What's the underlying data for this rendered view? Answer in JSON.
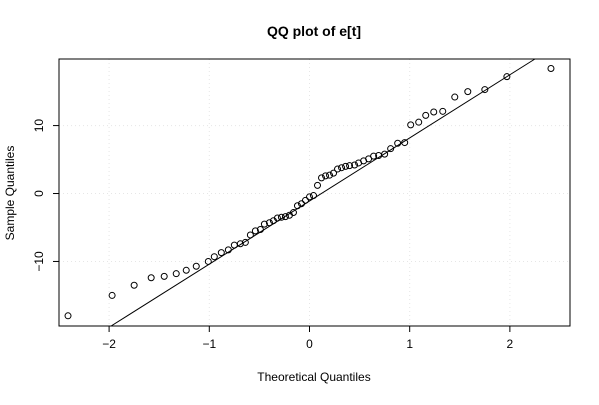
{
  "chart_data": {
    "type": "scatter",
    "title": "QQ plot of e[t]",
    "xlabel": "Theoretical Quantiles",
    "ylabel": "Sample Quantiles",
    "xlim": [
      -2.5,
      2.6
    ],
    "ylim": [
      -19.5,
      19.8
    ],
    "x_ticks": [
      -2,
      -1,
      0,
      1,
      2
    ],
    "y_ticks": [
      -10,
      0,
      10
    ],
    "x_tick_labels": [
      "−2",
      "−1",
      "0",
      "1",
      "2"
    ],
    "y_tick_labels": [
      "−10",
      "0",
      "10"
    ],
    "grid": true,
    "legend": "none",
    "marker": "open-circle",
    "reference_line": {
      "x": [
        -1.98,
        2.25
      ],
      "y": [
        -19.5,
        19.8
      ]
    },
    "series": [
      {
        "points": [
          [
            -2.41,
            -18.0
          ],
          [
            -1.97,
            -15.0
          ],
          [
            -1.75,
            -13.5
          ],
          [
            -1.58,
            -12.4
          ],
          [
            -1.45,
            -12.2
          ],
          [
            -1.33,
            -11.8
          ],
          [
            -1.23,
            -11.3
          ],
          [
            -1.13,
            -10.7
          ],
          [
            -1.01,
            -10.0
          ],
          [
            -0.95,
            -9.3
          ],
          [
            -0.88,
            -8.7
          ],
          [
            -0.81,
            -8.3
          ],
          [
            -0.75,
            -7.6
          ],
          [
            -0.69,
            -7.4
          ],
          [
            -0.64,
            -7.2
          ],
          [
            -0.59,
            -6.1
          ],
          [
            -0.54,
            -5.5
          ],
          [
            -0.49,
            -5.3
          ],
          [
            -0.45,
            -4.5
          ],
          [
            -0.4,
            -4.3
          ],
          [
            -0.36,
            -4.0
          ],
          [
            -0.32,
            -3.6
          ],
          [
            -0.28,
            -3.5
          ],
          [
            -0.24,
            -3.4
          ],
          [
            -0.2,
            -3.2
          ],
          [
            -0.16,
            -2.8
          ],
          [
            -0.12,
            -1.8
          ],
          [
            -0.08,
            -1.5
          ],
          [
            -0.04,
            -1.0
          ],
          [
            0.0,
            -0.5
          ],
          [
            0.04,
            -0.3
          ],
          [
            0.08,
            1.2
          ],
          [
            0.12,
            2.3
          ],
          [
            0.16,
            2.6
          ],
          [
            0.2,
            2.7
          ],
          [
            0.24,
            3.0
          ],
          [
            0.28,
            3.6
          ],
          [
            0.32,
            3.8
          ],
          [
            0.36,
            4.0
          ],
          [
            0.4,
            4.1
          ],
          [
            0.45,
            4.2
          ],
          [
            0.49,
            4.5
          ],
          [
            0.54,
            4.8
          ],
          [
            0.59,
            5.1
          ],
          [
            0.64,
            5.5
          ],
          [
            0.69,
            5.6
          ],
          [
            0.75,
            5.8
          ],
          [
            0.81,
            6.6
          ],
          [
            0.88,
            7.4
          ],
          [
            0.95,
            7.5
          ],
          [
            1.01,
            10.1
          ],
          [
            1.09,
            10.5
          ],
          [
            1.16,
            11.5
          ],
          [
            1.24,
            12.0
          ],
          [
            1.33,
            12.1
          ],
          [
            1.45,
            14.2
          ],
          [
            1.58,
            15.0
          ],
          [
            1.75,
            15.3
          ],
          [
            1.97,
            17.2
          ],
          [
            2.41,
            18.4
          ]
        ]
      }
    ]
  }
}
